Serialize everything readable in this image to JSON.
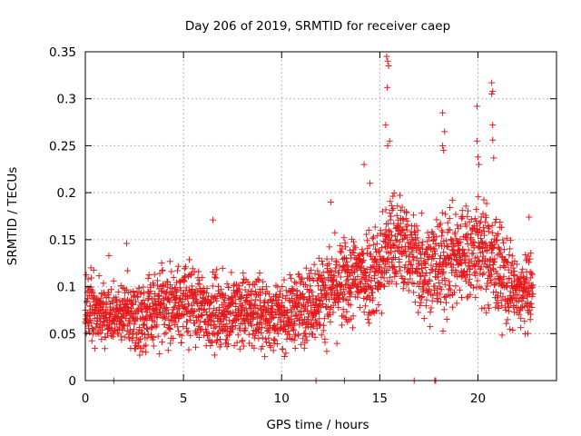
{
  "chart_data": {
    "type": "scatter",
    "title": "Day 206 of 2019, SRMTID for receiver caep",
    "xlabel": "GPS time / hours",
    "ylabel": "SRMTID / TECUs",
    "xlim": [
      0,
      24
    ],
    "ylim": [
      0,
      0.35
    ],
    "xticks": [
      0,
      5,
      10,
      15,
      20
    ],
    "xtick_labels": [
      "0",
      "5",
      "10",
      "15",
      "20"
    ],
    "yticks": [
      0,
      0.05,
      0.1,
      0.15,
      0.2,
      0.25,
      0.3,
      0.35
    ],
    "ytick_labels": [
      "0",
      "0.05",
      "0.1",
      "0.15",
      "0.2",
      "0.25",
      "0.3",
      "0.35"
    ],
    "grid": true,
    "marker": "+",
    "color": "#e41a1c",
    "series": [
      {
        "name": "SRMTID",
        "profile": [
          {
            "x": 0.0,
            "mean": 0.08,
            "spread": 0.025
          },
          {
            "x": 1.0,
            "mean": 0.068,
            "spread": 0.02
          },
          {
            "x": 2.0,
            "mean": 0.07,
            "spread": 0.022
          },
          {
            "x": 3.0,
            "mean": 0.07,
            "spread": 0.025
          },
          {
            "x": 4.0,
            "mean": 0.078,
            "spread": 0.025
          },
          {
            "x": 5.0,
            "mean": 0.085,
            "spread": 0.028
          },
          {
            "x": 6.0,
            "mean": 0.075,
            "spread": 0.025
          },
          {
            "x": 7.0,
            "mean": 0.072,
            "spread": 0.024
          },
          {
            "x": 8.0,
            "mean": 0.075,
            "spread": 0.025
          },
          {
            "x": 9.0,
            "mean": 0.072,
            "spread": 0.024
          },
          {
            "x": 10.0,
            "mean": 0.068,
            "spread": 0.022
          },
          {
            "x": 11.0,
            "mean": 0.078,
            "spread": 0.025
          },
          {
            "x": 12.0,
            "mean": 0.09,
            "spread": 0.028
          },
          {
            "x": 13.0,
            "mean": 0.1,
            "spread": 0.03
          },
          {
            "x": 14.0,
            "mean": 0.112,
            "spread": 0.032
          },
          {
            "x": 15.0,
            "mean": 0.12,
            "spread": 0.035
          },
          {
            "x": 15.5,
            "mean": 0.145,
            "spread": 0.035
          },
          {
            "x": 16.0,
            "mean": 0.15,
            "spread": 0.03
          },
          {
            "x": 17.0,
            "mean": 0.125,
            "spread": 0.035
          },
          {
            "x": 18.0,
            "mean": 0.12,
            "spread": 0.035
          },
          {
            "x": 19.0,
            "mean": 0.135,
            "spread": 0.035
          },
          {
            "x": 20.0,
            "mean": 0.14,
            "spread": 0.035
          },
          {
            "x": 21.0,
            "mean": 0.12,
            "spread": 0.035
          },
          {
            "x": 22.0,
            "mean": 0.09,
            "spread": 0.025
          },
          {
            "x": 22.8,
            "mean": 0.095,
            "spread": 0.025
          }
        ],
        "x_range": [
          0.0,
          22.8
        ],
        "n_points": 2600,
        "outliers": [
          {
            "x": 15.35,
            "y": 0.345
          },
          {
            "x": 15.4,
            "y": 0.34
          },
          {
            "x": 15.45,
            "y": 0.335
          },
          {
            "x": 15.38,
            "y": 0.312
          },
          {
            "x": 15.3,
            "y": 0.272
          },
          {
            "x": 15.5,
            "y": 0.255
          },
          {
            "x": 15.4,
            "y": 0.25
          },
          {
            "x": 14.2,
            "y": 0.23
          },
          {
            "x": 14.5,
            "y": 0.21
          },
          {
            "x": 18.2,
            "y": 0.285
          },
          {
            "x": 18.3,
            "y": 0.265
          },
          {
            "x": 18.2,
            "y": 0.25
          },
          {
            "x": 18.25,
            "y": 0.245
          },
          {
            "x": 19.95,
            "y": 0.292
          },
          {
            "x": 19.95,
            "y": 0.255
          },
          {
            "x": 20.0,
            "y": 0.238
          },
          {
            "x": 20.05,
            "y": 0.23
          },
          {
            "x": 20.7,
            "y": 0.317
          },
          {
            "x": 20.75,
            "y": 0.308
          },
          {
            "x": 20.7,
            "y": 0.305
          },
          {
            "x": 20.75,
            "y": 0.272
          },
          {
            "x": 20.75,
            "y": 0.256
          },
          {
            "x": 20.8,
            "y": 0.237
          },
          {
            "x": 6.5,
            "y": 0.171
          },
          {
            "x": 2.1,
            "y": 0.146
          },
          {
            "x": 12.5,
            "y": 0.19
          },
          {
            "x": 22.6,
            "y": 0.174
          },
          {
            "x": 1.2,
            "y": 0.133
          }
        ],
        "zero_points": [
          1.45,
          11.75,
          13.2,
          16.75,
          17.8,
          17.85
        ]
      }
    ]
  }
}
